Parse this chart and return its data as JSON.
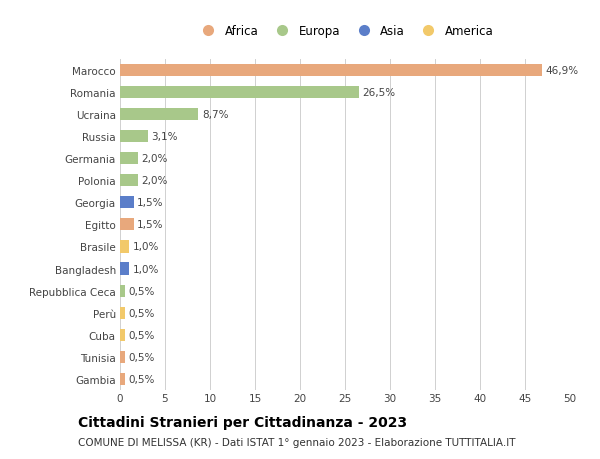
{
  "countries": [
    "Marocco",
    "Romania",
    "Ucraina",
    "Russia",
    "Germania",
    "Polonia",
    "Georgia",
    "Egitto",
    "Brasile",
    "Bangladesh",
    "Repubblica Ceca",
    "Perù",
    "Cuba",
    "Tunisia",
    "Gambia"
  ],
  "values": [
    46.9,
    26.5,
    8.7,
    3.1,
    2.0,
    2.0,
    1.5,
    1.5,
    1.0,
    1.0,
    0.5,
    0.5,
    0.5,
    0.5,
    0.5
  ],
  "labels": [
    "46,9%",
    "26,5%",
    "8,7%",
    "3,1%",
    "2,0%",
    "2,0%",
    "1,5%",
    "1,5%",
    "1,0%",
    "1,0%",
    "0,5%",
    "0,5%",
    "0,5%",
    "0,5%",
    "0,5%"
  ],
  "continents": [
    "Africa",
    "Europa",
    "Europa",
    "Europa",
    "Europa",
    "Europa",
    "Asia",
    "Africa",
    "America",
    "Asia",
    "Europa",
    "America",
    "America",
    "Africa",
    "Africa"
  ],
  "colors": {
    "Africa": "#E8A87C",
    "Europa": "#A8C88A",
    "Asia": "#5B7EC9",
    "America": "#F2C96A"
  },
  "legend_order": [
    "Africa",
    "Europa",
    "Asia",
    "America"
  ],
  "title": "Cittadini Stranieri per Cittadinanza - 2023",
  "subtitle": "COMUNE DI MELISSA (KR) - Dati ISTAT 1° gennaio 2023 - Elaborazione TUTTITALIA.IT",
  "xlim": [
    0,
    50
  ],
  "xticks": [
    0,
    5,
    10,
    15,
    20,
    25,
    30,
    35,
    40,
    45,
    50
  ],
  "background_color": "#ffffff",
  "grid_color": "#d0d0d0",
  "bar_height": 0.55,
  "title_fontsize": 10,
  "subtitle_fontsize": 7.5,
  "label_fontsize": 7.5,
  "ytick_fontsize": 7.5,
  "xtick_fontsize": 7.5,
  "legend_fontsize": 8.5
}
